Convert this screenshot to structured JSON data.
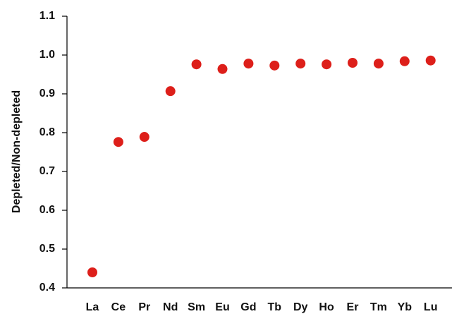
{
  "chart_data": {
    "type": "scatter",
    "y_label": "Depleted/Non-depleted",
    "categories": [
      "La",
      "Ce",
      "Pr",
      "Nd",
      "Sm",
      "Eu",
      "Gd",
      "Tb",
      "Dy",
      "Ho",
      "Er",
      "Tm",
      "Yb",
      "Lu"
    ],
    "values": [
      0.44,
      0.776,
      0.789,
      0.907,
      0.976,
      0.964,
      0.978,
      0.973,
      0.978,
      0.976,
      0.98,
      0.978,
      0.984,
      0.986
    ],
    "color": "#dd1f1a",
    "ylim": [
      0.4,
      1.1
    ],
    "yticks": [
      0.4,
      0.5,
      0.6,
      0.7,
      0.8,
      0.9,
      {
        "value": 1,
        "label": "1.0"
      },
      1.1
    ],
    "grid": false
  }
}
